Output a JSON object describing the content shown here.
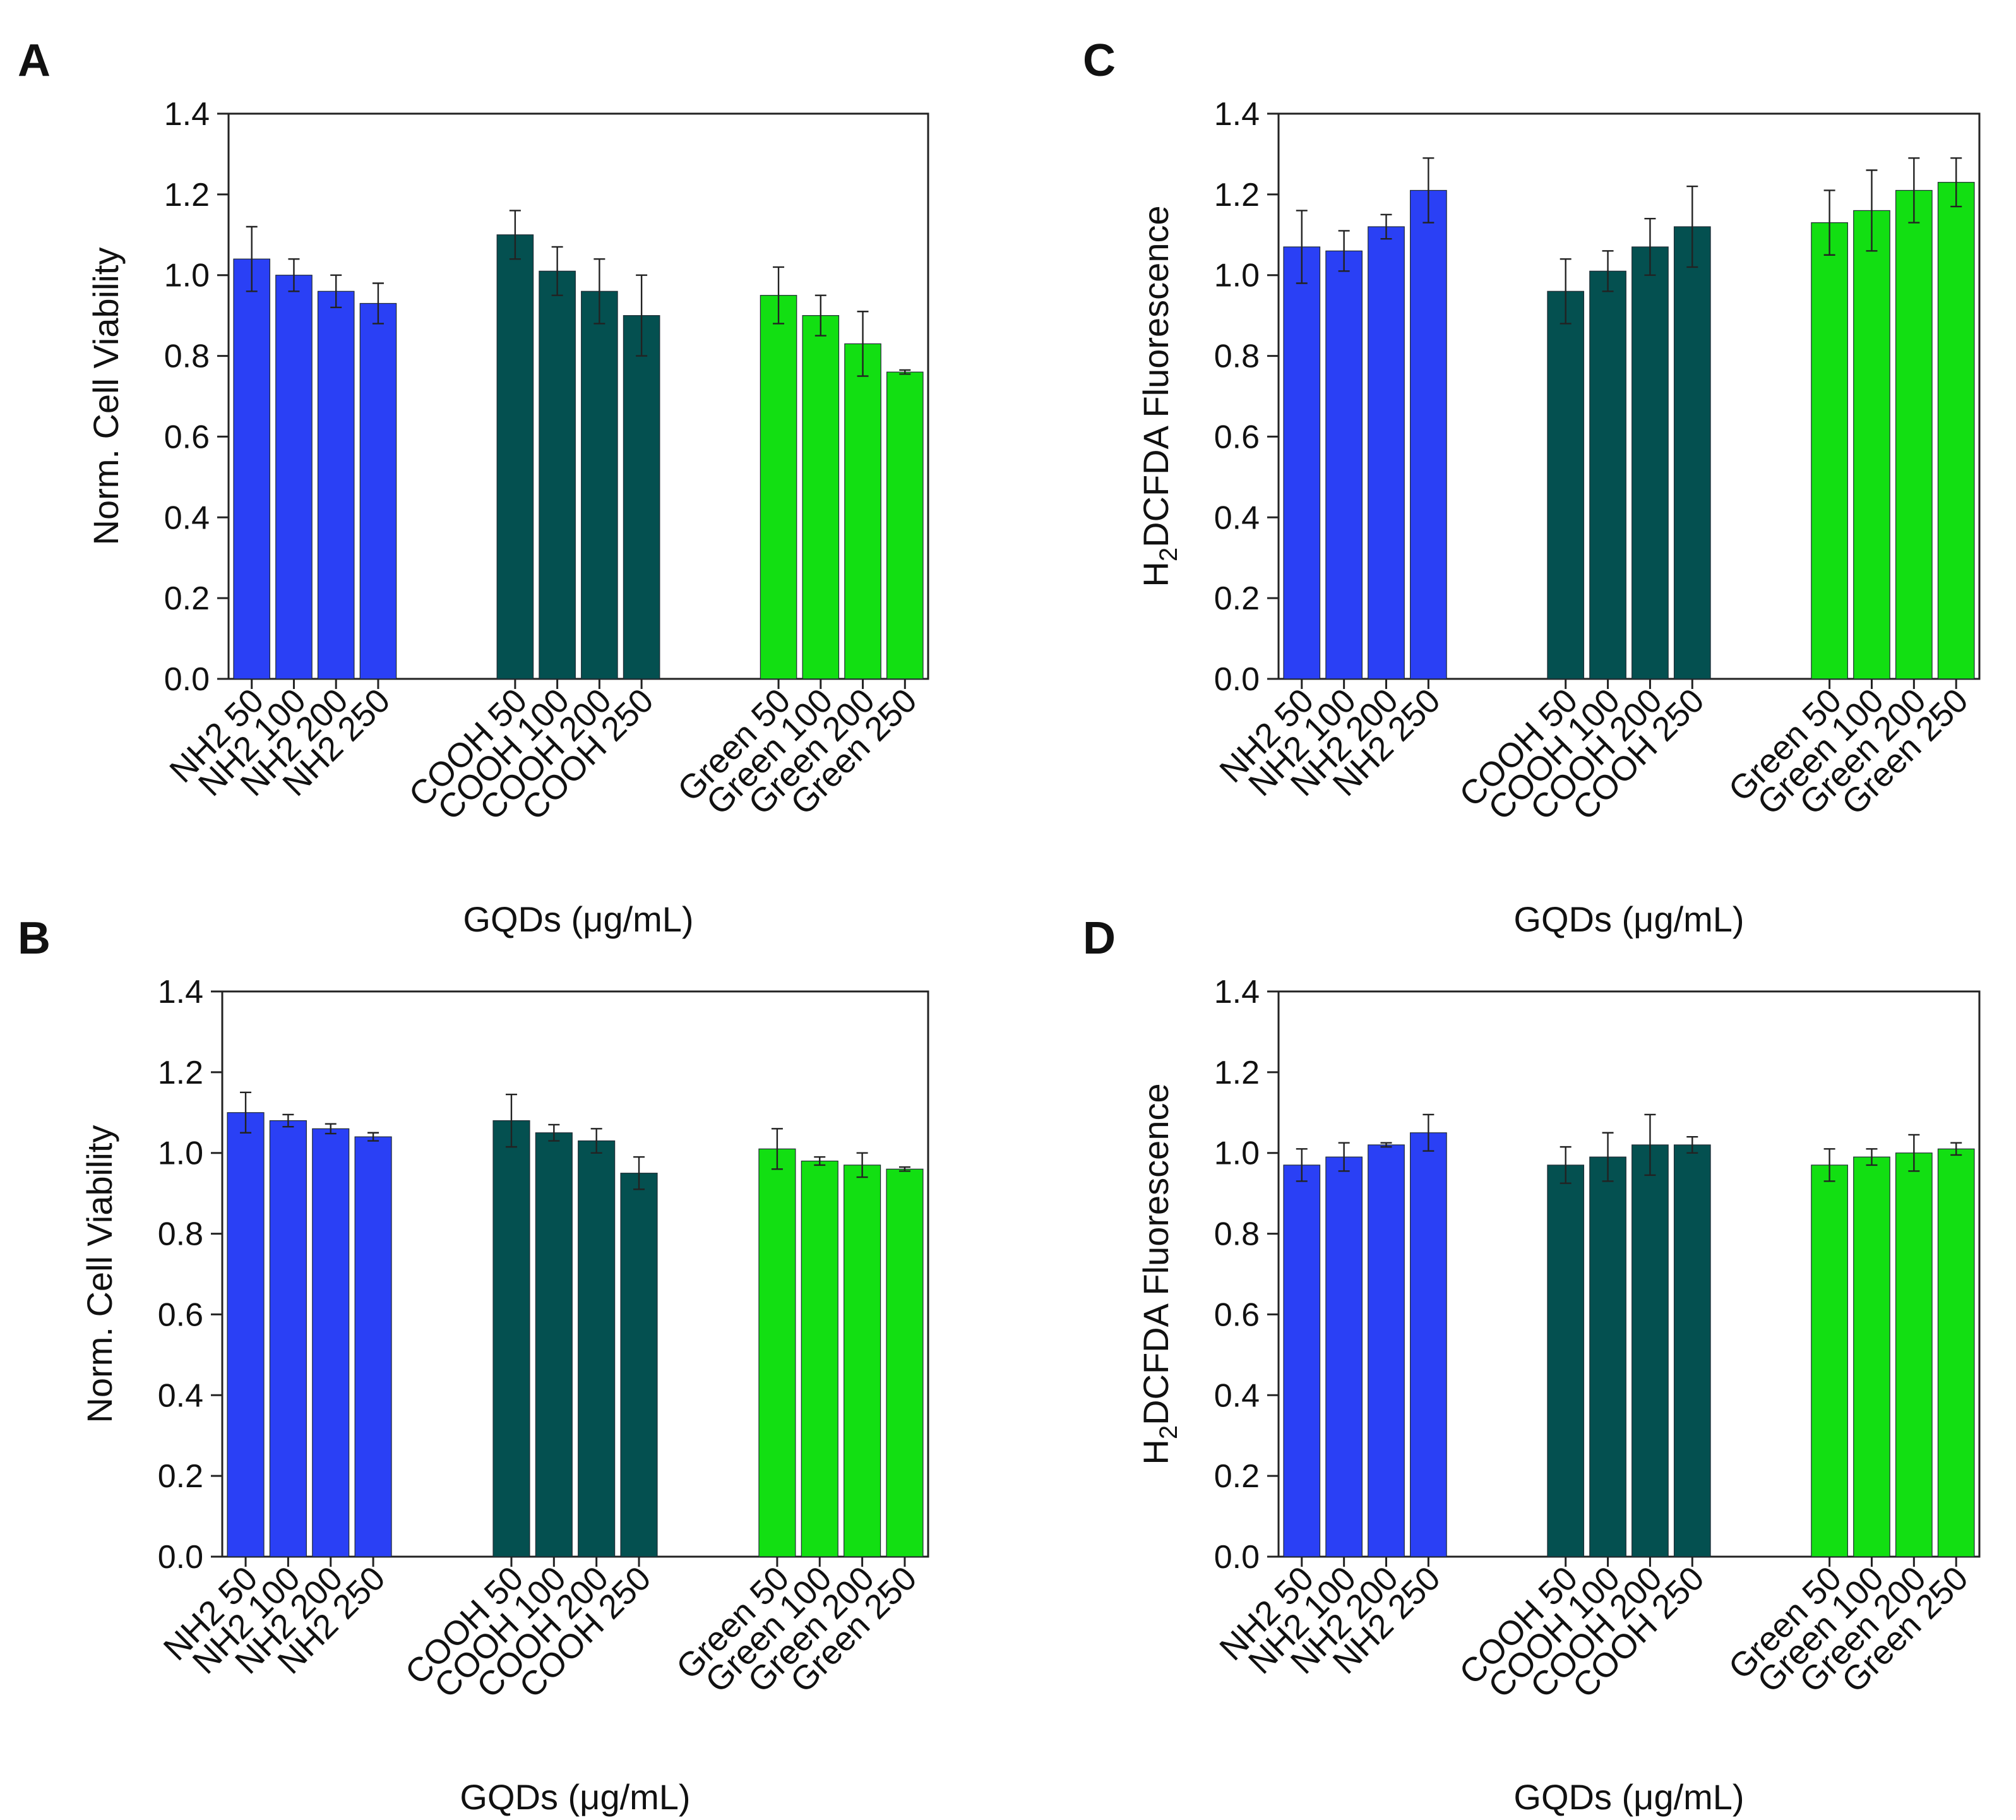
{
  "chart_data": [
    {
      "panel": "A",
      "type": "bar",
      "categories": [
        "NH2 50",
        "NH2 100",
        "NH2 200",
        "NH2 250",
        "COOH 50",
        "COOH 100",
        "COOH 200",
        "COOH 250",
        "Green 50",
        "Green 100",
        "Green 200",
        "Green 250"
      ],
      "groups": [
        {
          "name": "NH2",
          "color": "#2a40f5",
          "values": [
            1.04,
            1.0,
            0.96,
            0.93
          ],
          "errors": [
            0.08,
            0.04,
            0.04,
            0.05
          ]
        },
        {
          "name": "COOH",
          "color": "#045050",
          "values": [
            1.1,
            1.01,
            0.96,
            0.9
          ],
          "errors": [
            0.06,
            0.06,
            0.08,
            0.1
          ]
        },
        {
          "name": "Green",
          "color": "#12df12",
          "values": [
            0.95,
            0.9,
            0.83,
            0.76
          ],
          "errors": [
            0.07,
            0.05,
            0.08,
            0.005
          ]
        }
      ],
      "yticks": [
        "0.0",
        "0.2",
        "0.4",
        "0.6",
        "0.8",
        "1.0",
        "1.2",
        "1.4"
      ],
      "ylim": [
        0,
        1.4
      ],
      "ylabel": "Norm. Cell Viability",
      "xlabel": "GQDs (μg/mL)"
    },
    {
      "panel": "B",
      "type": "bar",
      "categories": [
        "NH2 50",
        "NH2 100",
        "NH2 200",
        "NH2 250",
        "COOH 50",
        "COOH 100",
        "COOH 200",
        "COOH 250",
        "Green 50",
        "Green 100",
        "Green 200",
        "Green 250"
      ],
      "groups": [
        {
          "name": "NH2",
          "color": "#2a40f5",
          "values": [
            1.1,
            1.08,
            1.06,
            1.04
          ],
          "errors": [
            0.05,
            0.015,
            0.012,
            0.01
          ]
        },
        {
          "name": "COOH",
          "color": "#045050",
          "values": [
            1.08,
            1.05,
            1.03,
            0.95
          ],
          "errors": [
            0.065,
            0.02,
            0.03,
            0.04
          ]
        },
        {
          "name": "Green",
          "color": "#12df12",
          "values": [
            1.01,
            0.98,
            0.97,
            0.96
          ],
          "errors": [
            0.05,
            0.01,
            0.03,
            0.005
          ]
        }
      ],
      "yticks": [
        "0.0",
        "0.2",
        "0.4",
        "0.6",
        "0.8",
        "1.0",
        "1.2",
        "1.4"
      ],
      "ylim": [
        0,
        1.4
      ],
      "ylabel": "Norm. Cell Viability",
      "xlabel": "GQDs (μg/mL)"
    },
    {
      "panel": "C",
      "type": "bar",
      "categories": [
        "NH2 50",
        "NH2 100",
        "NH2 200",
        "NH2 250",
        "COOH 50",
        "COOH 100",
        "COOH 200",
        "COOH 250",
        "Green 50",
        "Green 100",
        "Green 200",
        "Green 250"
      ],
      "groups": [
        {
          "name": "NH2",
          "color": "#2a40f5",
          "values": [
            1.07,
            1.06,
            1.12,
            1.21
          ],
          "errors": [
            0.09,
            0.05,
            0.03,
            0.08
          ]
        },
        {
          "name": "COOH",
          "color": "#045050",
          "values": [
            0.96,
            1.01,
            1.07,
            1.12
          ],
          "errors": [
            0.08,
            0.05,
            0.07,
            0.1
          ]
        },
        {
          "name": "Green",
          "color": "#12df12",
          "values": [
            1.13,
            1.16,
            1.21,
            1.23
          ],
          "errors": [
            0.08,
            0.1,
            0.08,
            0.06
          ]
        }
      ],
      "yticks": [
        "0.0",
        "0.2",
        "0.4",
        "0.6",
        "0.8",
        "1.0",
        "1.2",
        "1.4"
      ],
      "ylim": [
        0,
        1.4
      ],
      "ylabel_main": "H",
      "ylabel_sub": "2",
      "ylabel_rest": "DCFDA Fluorescence",
      "xlabel": "GQDs (μg/mL)"
    },
    {
      "panel": "D",
      "type": "bar",
      "categories": [
        "NH2 50",
        "NH2 100",
        "NH2 200",
        "NH2 250",
        "COOH 50",
        "COOH 100",
        "COOH 200",
        "COOH 250",
        "Green 50",
        "Green 100",
        "Green 200",
        "Green 250"
      ],
      "groups": [
        {
          "name": "NH2",
          "color": "#2a40f5",
          "values": [
            0.97,
            0.99,
            1.02,
            1.05
          ],
          "errors": [
            0.04,
            0.035,
            0.005,
            0.045
          ]
        },
        {
          "name": "COOH",
          "color": "#045050",
          "values": [
            0.97,
            0.99,
            1.02,
            1.02
          ],
          "errors": [
            0.045,
            0.06,
            0.075,
            0.02
          ]
        },
        {
          "name": "Green",
          "color": "#12df12",
          "values": [
            0.97,
            0.99,
            1.0,
            1.01
          ],
          "errors": [
            0.04,
            0.02,
            0.045,
            0.015
          ]
        }
      ],
      "yticks": [
        "0.0",
        "0.2",
        "0.4",
        "0.6",
        "0.8",
        "1.0",
        "1.2",
        "1.4"
      ],
      "ylim": [
        0,
        1.4
      ],
      "ylabel_main": "H",
      "ylabel_sub": "2",
      "ylabel_rest": "DCFDA Fluorescence",
      "xlabel": "GQDs (μg/mL)"
    }
  ]
}
